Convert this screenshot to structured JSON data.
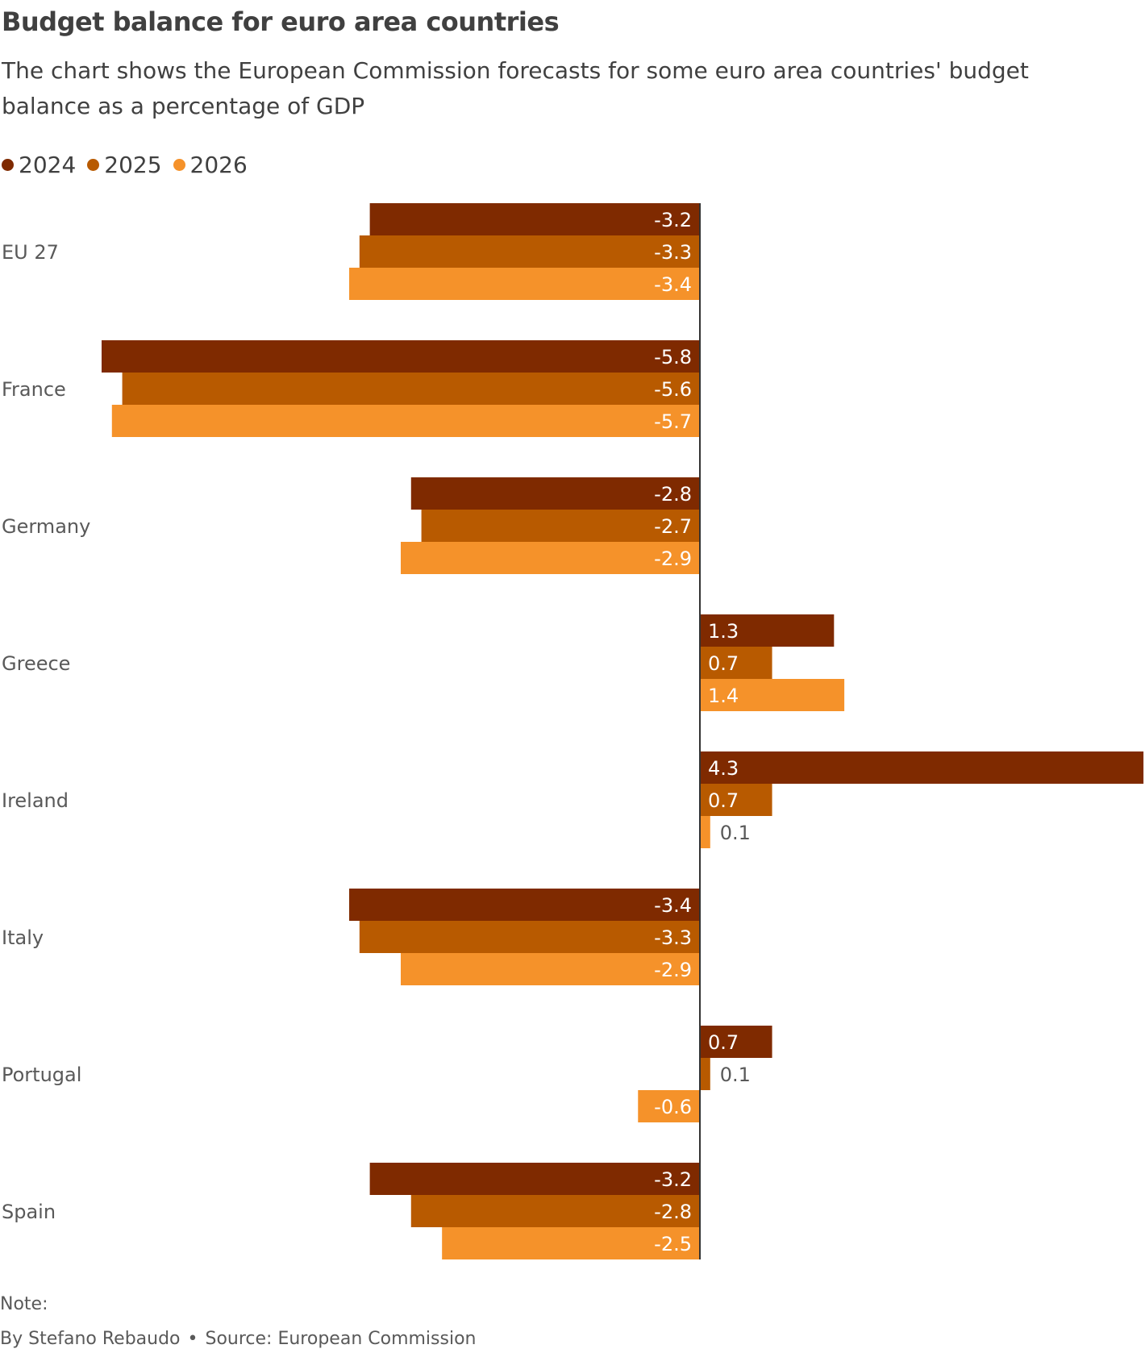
{
  "header": {
    "title": "Budget balance for euro area countries",
    "subtitle": "The chart shows the European Commission forecasts for some euro area countries' budget balance as a percentage of GDP"
  },
  "footer": {
    "note_label": "Note:",
    "byline": "By Stefano Rebaudo",
    "separator": "•",
    "source": "Source: European Commission"
  },
  "chart_data": {
    "type": "bar",
    "orientation": "horizontal",
    "title": "Budget balance for euro area countries",
    "subtitle": "The chart shows the European Commission forecasts for some euro area countries' budget balance as a percentage of GDP",
    "categories": [
      "EU 27",
      "France",
      "Germany",
      "Greece",
      "Ireland",
      "Italy",
      "Portugal",
      "Spain"
    ],
    "series": [
      {
        "name": "2024",
        "color": "#7f2a00",
        "values": [
          -3.2,
          -5.8,
          -2.8,
          1.3,
          4.3,
          -3.4,
          0.7,
          -3.2
        ]
      },
      {
        "name": "2025",
        "color": "#b85a00",
        "values": [
          -3.3,
          -5.6,
          -2.7,
          0.7,
          0.7,
          -3.3,
          0.1,
          -2.8
        ]
      },
      {
        "name": "2026",
        "color": "#f5922a",
        "values": [
          -3.4,
          -5.7,
          -2.9,
          1.4,
          0.1,
          -2.9,
          -0.6,
          -2.5
        ]
      }
    ],
    "xlim": [
      -5.8,
      4.3
    ],
    "grid": false,
    "legend_position": "top-left",
    "data_labels": true,
    "zero_line": true
  }
}
